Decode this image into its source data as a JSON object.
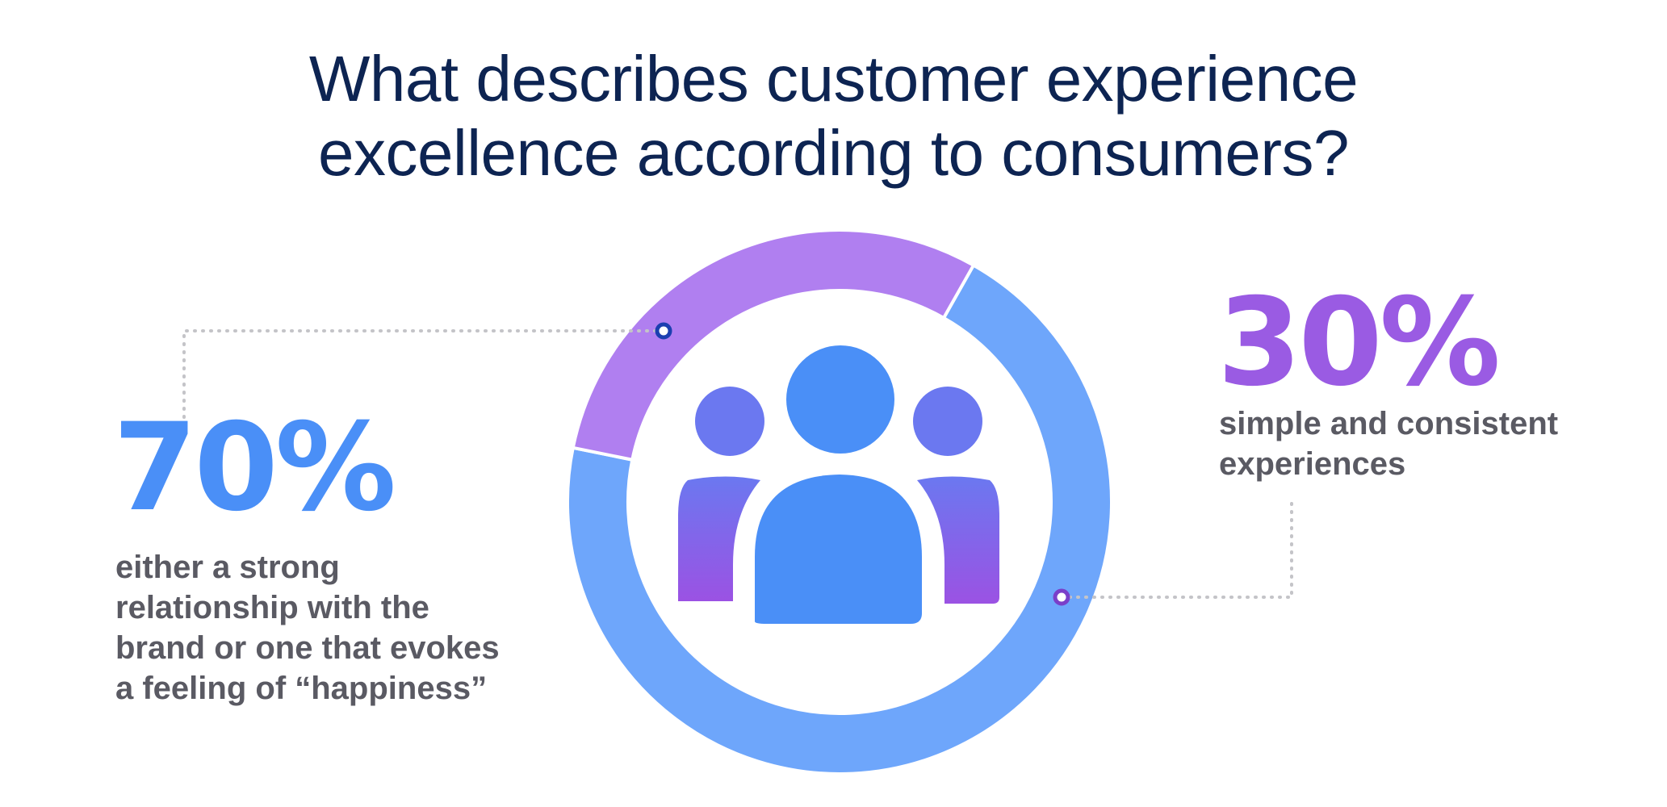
{
  "title": {
    "line1": "What describes customer experience",
    "line2": "excellence according to consumers?"
  },
  "chart_data": {
    "type": "pie",
    "style": "donut",
    "title": "What describes customer experience excellence according to consumers?",
    "center_icon": "people-group-icon",
    "slices": [
      {
        "label": "either a strong relationship with the brand or one that evokes a feeling of “happiness”",
        "value": 70,
        "display": "70%",
        "color": "#6ea6fb"
      },
      {
        "label": "simple and consistent experiences",
        "value": 30,
        "display": "30%",
        "color": "#b07ff0"
      }
    ]
  },
  "callouts": {
    "left": {
      "value": "70%",
      "lines": [
        "either a strong",
        "relationship with the",
        "brand or one that evokes",
        "a feeling of “happiness”"
      ],
      "color": "#4a8ff7"
    },
    "right": {
      "value": "30%",
      "lines": [
        "simple and consistent",
        "experiences"
      ],
      "color": "#9a5be3"
    }
  },
  "colors": {
    "title": "#0d2452",
    "text": "#5a5a63",
    "leader": "#c4c4c8",
    "marker_left": "#1c3fb0",
    "marker_right": "#7a3fc9",
    "icon_center": "#4a8ff7",
    "icon_side_top": "#6b78f0",
    "icon_side_bottom": "#9b52e3"
  }
}
